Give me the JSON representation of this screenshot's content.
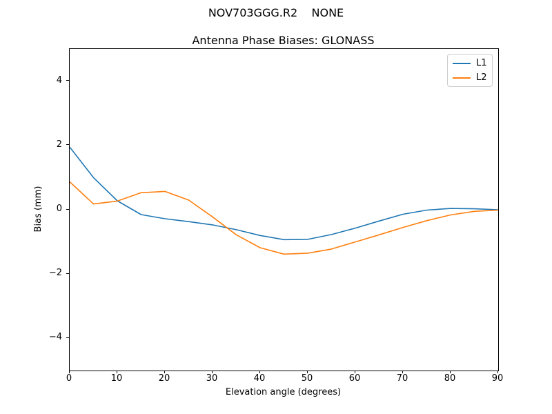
{
  "figure": {
    "suptitle": "NOV703GGG.R2    NONE",
    "background": "#ffffff",
    "spine_color": "#000000"
  },
  "chart_data": {
    "type": "line",
    "title": "Antenna Phase Biases: GLONASS",
    "xlabel": "Elevation angle (degrees)",
    "ylabel": "Bias (mm)",
    "xlim": [
      0,
      90
    ],
    "ylim": [
      -5,
      5
    ],
    "xticks": [
      0,
      10,
      20,
      30,
      40,
      50,
      60,
      70,
      80,
      90
    ],
    "yticks": [
      -4,
      -2,
      0,
      2,
      4
    ],
    "grid": false,
    "legend": {
      "position": "upper right",
      "entries": [
        "L1",
        "L2"
      ]
    },
    "x": [
      0,
      5,
      10,
      15,
      20,
      25,
      30,
      35,
      40,
      45,
      50,
      55,
      60,
      65,
      70,
      75,
      80,
      85,
      90
    ],
    "series": [
      {
        "name": "L1",
        "color": "#1f77b4",
        "values": [
          1.95,
          1.0,
          0.28,
          -0.15,
          -0.28,
          -0.37,
          -0.47,
          -0.62,
          -0.8,
          -0.93,
          -0.92,
          -0.77,
          -0.57,
          -0.35,
          -0.14,
          -0.01,
          0.04,
          0.03,
          0.0
        ]
      },
      {
        "name": "L2",
        "color": "#ff7f0e",
        "values": [
          0.87,
          0.18,
          0.27,
          0.53,
          0.57,
          0.3,
          -0.22,
          -0.78,
          -1.18,
          -1.38,
          -1.35,
          -1.22,
          -1.0,
          -0.78,
          -0.55,
          -0.34,
          -0.16,
          -0.05,
          -0.01
        ]
      }
    ]
  }
}
